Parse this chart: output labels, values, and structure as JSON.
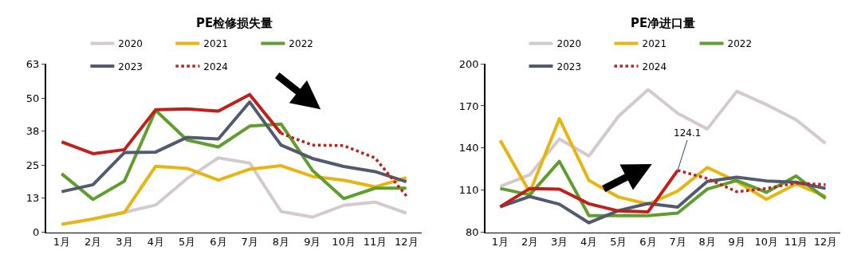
{
  "chart_data": [
    {
      "type": "line",
      "title": "PE检修损失量",
      "categories": [
        "1月",
        "2月",
        "3月",
        "4月",
        "5月",
        "6月",
        "7月",
        "8月",
        "9月",
        "10月",
        "11月",
        "12月"
      ],
      "ylim": [
        0,
        63
      ],
      "yticks": [
        0,
        13,
        25,
        38,
        50,
        63
      ],
      "grid": false,
      "legend": "top",
      "series": [
        {
          "name": "2020",
          "color": "#d4c9cc",
          "line_style": "solid",
          "values": [
            3.0,
            5.0,
            7.5,
            10.2,
            20.1,
            27.8,
            25.9,
            7.8,
            5.7,
            10.1,
            11.3,
            7.2
          ]
        },
        {
          "name": "2021",
          "color": "#e8b40f",
          "line_style": "solid",
          "values": [
            3.0,
            5.0,
            7.4,
            24.7,
            23.9,
            19.5,
            23.6,
            24.9,
            20.9,
            19.5,
            17.0,
            20.4
          ]
        },
        {
          "name": "2022",
          "color": "#5f9e2e",
          "line_style": "solid",
          "values": [
            21.9,
            12.3,
            19.1,
            45.6,
            34.5,
            31.9,
            39.7,
            40.5,
            23.2,
            12.6,
            16.5,
            16.5
          ]
        },
        {
          "name": "2023",
          "color": "#525a6e",
          "line_style": "solid",
          "values": [
            15.2,
            17.8,
            29.8,
            30.0,
            35.5,
            34.9,
            48.7,
            32.6,
            27.6,
            24.6,
            22.7,
            18.9
          ]
        },
        {
          "color": "#c0201a",
          "line_style": "solid",
          "values": [
            33.8,
            29.4,
            30.9,
            45.8,
            46.1,
            45.3,
            51.5,
            37.0,
            null,
            null,
            null,
            null
          ]
        },
        {
          "name": "2024",
          "color": "#c0201a",
          "line_style": "dotted",
          "values": [
            null,
            null,
            null,
            null,
            null,
            null,
            null,
            37.0,
            32.6,
            32.4,
            27.8,
            13.6
          ]
        }
      ]
    },
    {
      "type": "line",
      "title": "PE净进口量",
      "categories": [
        "1月",
        "2月",
        "3月",
        "4月",
        "5月",
        "6月",
        "7月",
        "8月",
        "9月",
        "10月",
        "11月",
        "12月"
      ],
      "ylim": [
        80,
        200
      ],
      "yticks": [
        80,
        110,
        140,
        170,
        200
      ],
      "grid": false,
      "legend": "top",
      "annotations": [
        {
          "text": "124.1",
          "x": "7月",
          "y": 124.1
        }
      ],
      "series": [
        {
          "name": "2020",
          "color": "#d4c9cc",
          "line_style": "solid",
          "values": [
            112.6,
            121.0,
            146.5,
            134.4,
            162.6,
            181.6,
            164.7,
            153.6,
            180.4,
            170.9,
            160.2,
            143.3
          ]
        },
        {
          "name": "2021",
          "color": "#e8b40f",
          "line_style": "solid",
          "values": [
            145.4,
            108.4,
            160.8,
            116.9,
            105.1,
            100.1,
            109.4,
            126.2,
            116.2,
            103.5,
            114.4,
            105.5
          ]
        },
        {
          "name": "2022",
          "color": "#5f9e2e",
          "line_style": "solid",
          "values": [
            111.2,
            106.7,
            130.5,
            91.9,
            91.9,
            91.9,
            93.7,
            110.8,
            116.9,
            108.5,
            120.1,
            104.1
          ]
        },
        {
          "name": "2023",
          "color": "#525a6e",
          "line_style": "solid",
          "values": [
            98.2,
            105.5,
            100.0,
            86.8,
            95.5,
            100.5,
            98.0,
            116.2,
            119.2,
            116.6,
            115.7,
            111.2
          ]
        },
        {
          "color": "#c0201a",
          "line_style": "solid",
          "values": [
            98.2,
            111.2,
            110.7,
            100.3,
            95.2,
            94.6,
            124.1,
            null,
            null,
            null,
            null,
            null
          ]
        },
        {
          "name": "2024",
          "color": "#c0201a",
          "line_style": "dotted",
          "values": [
            null,
            null,
            null,
            null,
            null,
            null,
            124.1,
            118.3,
            108.9,
            111.2,
            115.1,
            113.9
          ]
        }
      ]
    }
  ]
}
